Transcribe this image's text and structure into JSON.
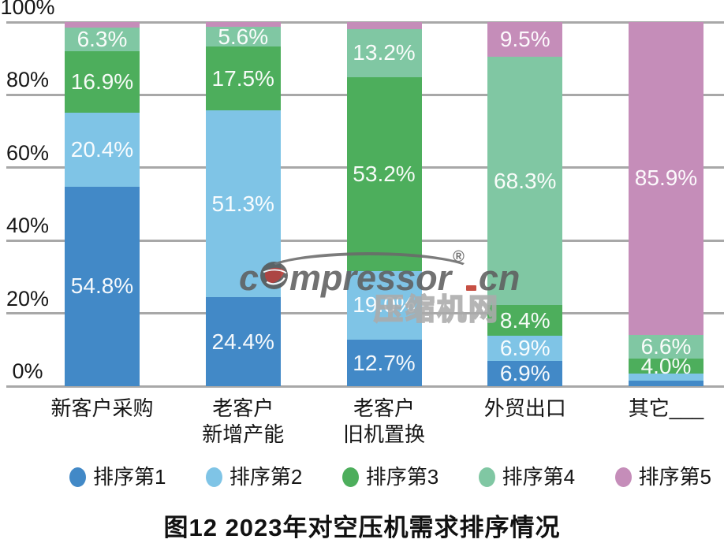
{
  "title": "图12 2023年对空压机需求排序情况",
  "watermark": {
    "part1": "c",
    "part2": "mpressor",
    "registered": "®",
    "part3": "cn",
    "subtitle": "压缩机网",
    "dot_color": "#c0392b"
  },
  "chart_data": {
    "type": "bar",
    "stacked": true,
    "percent": true,
    "title": "图12 2023年对空压机需求排序情况",
    "categories": [
      "新客户采购",
      "老客户\n新增产能",
      "老客户\n旧机置换",
      "外贸出口",
      "其它___"
    ],
    "series": [
      {
        "name": "排序第1",
        "color": "#4289c7",
        "values": [
          54.8,
          24.4,
          12.7,
          6.9,
          1.5
        ],
        "labels": [
          "54.8%",
          "24.4%",
          "12.7%",
          "6.9%",
          ""
        ]
      },
      {
        "name": "排序第2",
        "color": "#7fc4e6",
        "values": [
          20.4,
          51.3,
          19.0,
          6.9,
          2.0
        ],
        "labels": [
          "20.4%",
          "51.3%",
          "19.0%",
          "6.9%",
          ""
        ]
      },
      {
        "name": "排序第3",
        "color": "#4dae5c",
        "values": [
          16.9,
          17.5,
          53.2,
          8.4,
          4.0
        ],
        "labels": [
          "16.9%",
          "17.5%",
          "53.2%",
          "8.4%",
          "4.0%"
        ]
      },
      {
        "name": "排序第4",
        "color": "#80c7a3",
        "values": [
          6.3,
          5.6,
          13.2,
          68.3,
          6.6
        ],
        "labels": [
          "6.3%",
          "5.6%",
          "13.2%",
          "68.3%",
          "6.6%"
        ]
      },
      {
        "name": "排序第5",
        "color": "#c58db9",
        "values": [
          1.6,
          1.2,
          1.9,
          9.5,
          85.9
        ],
        "labels": [
          "",
          "",
          "",
          "9.5%",
          "85.9%"
        ]
      }
    ],
    "y_axis": {
      "min": 0,
      "max": 100,
      "tick_step": 20,
      "ticks": [
        "0%",
        "20%",
        "40%",
        "60%",
        "80%",
        "100%"
      ]
    },
    "legend_position": "bottom",
    "grid": true
  }
}
